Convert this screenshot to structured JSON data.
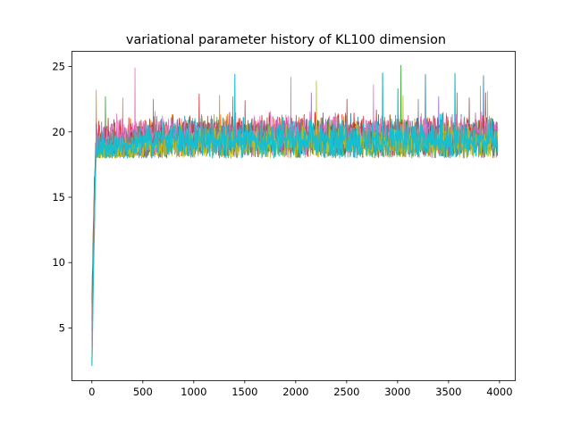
{
  "chart_data": {
    "type": "line",
    "title": "variational parameter history of KL100 dimension",
    "xlabel": "",
    "ylabel": "",
    "xlim": [
      -200,
      4150
    ],
    "ylim": [
      1.0,
      26.2
    ],
    "xticks": [
      0,
      500,
      1000,
      1500,
      2000,
      2500,
      3000,
      3500,
      4000
    ],
    "yticks": [
      5,
      10,
      15,
      20,
      25
    ],
    "grid": false,
    "legend": "none",
    "n_iterations": 3980,
    "series_colors": [
      "#1f77b4",
      "#ff7f0e",
      "#2ca02c",
      "#d62728",
      "#9467bd",
      "#8c564b",
      "#e377c2",
      "#7f7f7f",
      "#bcbd22",
      "#17becf"
    ],
    "series": [
      {
        "color": "#1f77b4",
        "start": 2.3,
        "mean": 19.5,
        "points": [
          [
            0,
            2.3
          ],
          [
            20,
            12.0
          ],
          [
            40,
            18.6
          ],
          [
            500,
            19.4
          ],
          [
            1000,
            19.6
          ],
          [
            2000,
            19.5
          ],
          [
            3000,
            19.4
          ],
          [
            3980,
            19.5
          ]
        ],
        "spikes": [
          [
            3270,
            24.4
          ],
          [
            3560,
            24.5
          ],
          [
            3840,
            24.3
          ]
        ]
      },
      {
        "color": "#ff7f0e",
        "start": 3.5,
        "mean": 19.6,
        "points": [
          [
            0,
            3.5
          ],
          [
            20,
            13.5
          ],
          [
            40,
            19.0
          ],
          [
            500,
            19.6
          ],
          [
            1500,
            19.7
          ],
          [
            2500,
            19.5
          ],
          [
            3500,
            19.6
          ],
          [
            3980,
            19.6
          ]
        ],
        "spikes": [
          [
            40,
            23.2
          ],
          [
            300,
            22.6
          ],
          [
            1250,
            22.8
          ]
        ]
      },
      {
        "color": "#2ca02c",
        "start": 2.7,
        "mean": 19.4,
        "points": [
          [
            0,
            2.7
          ],
          [
            20,
            11.0
          ],
          [
            40,
            18.4
          ],
          [
            800,
            19.3
          ],
          [
            1800,
            19.5
          ],
          [
            2800,
            19.4
          ],
          [
            3980,
            19.4
          ]
        ],
        "spikes": [
          [
            3030,
            25.1
          ],
          [
            130,
            22.7
          ],
          [
            3580,
            23.0
          ]
        ]
      },
      {
        "color": "#d62728",
        "start": 5.6,
        "mean": 19.7,
        "points": [
          [
            0,
            5.6
          ],
          [
            20,
            14.0
          ],
          [
            40,
            19.2
          ],
          [
            600,
            19.7
          ],
          [
            1600,
            19.8
          ],
          [
            2600,
            19.7
          ],
          [
            3980,
            19.7
          ]
        ],
        "spikes": [
          [
            2850,
            24.4
          ],
          [
            1050,
            22.9
          ],
          [
            3860,
            23.0
          ]
        ]
      },
      {
        "color": "#9467bd",
        "start": 4.0,
        "mean": 19.5,
        "points": [
          [
            0,
            4.0
          ],
          [
            20,
            12.5
          ],
          [
            40,
            18.8
          ],
          [
            700,
            19.5
          ],
          [
            1700,
            19.6
          ],
          [
            2700,
            19.5
          ],
          [
            3980,
            19.5
          ]
        ],
        "spikes": [
          [
            2150,
            23.0
          ],
          [
            600,
            22.5
          ],
          [
            3400,
            22.7
          ]
        ]
      },
      {
        "color": "#8c564b",
        "start": 6.9,
        "mean": 19.6,
        "points": [
          [
            0,
            6.9
          ],
          [
            20,
            15.0
          ],
          [
            40,
            19.3
          ],
          [
            900,
            19.6
          ],
          [
            1900,
            19.5
          ],
          [
            2900,
            19.6
          ],
          [
            3980,
            19.6
          ]
        ],
        "spikes": [
          [
            2500,
            22.5
          ],
          [
            1500,
            22.4
          ],
          [
            3700,
            22.6
          ]
        ]
      },
      {
        "color": "#e377c2",
        "start": 3.0,
        "mean": 19.8,
        "points": [
          [
            0,
            3.0
          ],
          [
            20,
            12.2
          ],
          [
            40,
            19.1
          ],
          [
            400,
            19.8
          ],
          [
            1400,
            19.7
          ],
          [
            2400,
            19.8
          ],
          [
            3980,
            19.8
          ]
        ],
        "spikes": [
          [
            420,
            24.9
          ],
          [
            1950,
            24.2
          ],
          [
            3810,
            23.5
          ],
          [
            2760,
            23.6
          ]
        ]
      },
      {
        "color": "#7f7f7f",
        "start": 4.8,
        "mean": 19.4,
        "points": [
          [
            0,
            4.8
          ],
          [
            20,
            13.0
          ],
          [
            40,
            18.7
          ],
          [
            1000,
            19.4
          ],
          [
            2000,
            19.3
          ],
          [
            3000,
            19.4
          ],
          [
            3980,
            19.4
          ]
        ],
        "spikes": [
          [
            1380,
            22.7
          ],
          [
            3200,
            22.5
          ]
        ]
      },
      {
        "color": "#bcbd22",
        "start": 2.6,
        "mean": 19.2,
        "points": [
          [
            0,
            2.6
          ],
          [
            20,
            11.5
          ],
          [
            40,
            18.3
          ],
          [
            850,
            19.0
          ],
          [
            2100,
            19.2
          ],
          [
            2950,
            19.1
          ],
          [
            3980,
            19.2
          ]
        ],
        "spikes": [
          [
            2200,
            23.9
          ],
          [
            3050,
            22.8
          ],
          [
            3880,
            23.1
          ]
        ]
      },
      {
        "color": "#17becf",
        "start": 2.1,
        "mean": 19.4,
        "points": [
          [
            0,
            2.1
          ],
          [
            20,
            11.3
          ],
          [
            40,
            18.6
          ],
          [
            500,
            19.4
          ],
          [
            1500,
            19.4
          ],
          [
            2500,
            19.3
          ],
          [
            3500,
            19.4
          ],
          [
            3980,
            19.4
          ]
        ],
        "spikes": [
          [
            1400,
            24.4
          ],
          [
            2850,
            24.5
          ],
          [
            3560,
            24.4
          ],
          [
            3000,
            23.3
          ]
        ]
      }
    ]
  }
}
